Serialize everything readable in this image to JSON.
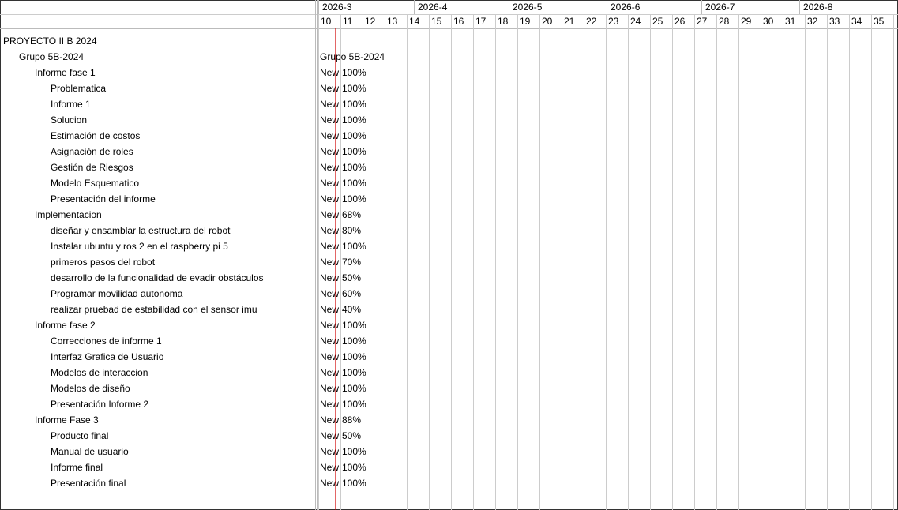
{
  "timeline": {
    "months": [
      "2026-3",
      "2026-4",
      "2026-5",
      "2026-6",
      "2026-7",
      "2026-8"
    ],
    "weeks": [
      "10",
      "11",
      "12",
      "13",
      "14",
      "15",
      "16",
      "17",
      "18",
      "19",
      "20",
      "21",
      "22",
      "23",
      "24",
      "25",
      "26",
      "27",
      "28",
      "29",
      "30",
      "31",
      "32",
      "33",
      "34",
      "35"
    ]
  },
  "tasks": [
    {
      "name": "PROYECTO II B 2024",
      "children": [
        {
          "name": "Grupo 5B-2024",
          "bar_label": "Grupo 5B-2024",
          "children": [
            {
              "name": "Informe fase 1",
              "status": "New",
              "progress": "100%",
              "children": [
                {
                  "name": "Problematica",
                  "status": "New",
                  "progress": "100%"
                },
                {
                  "name": "Informe 1",
                  "status": "New",
                  "progress": "100%"
                },
                {
                  "name": "Solucion",
                  "status": "New",
                  "progress": "100%"
                },
                {
                  "name": "Estimación de costos",
                  "status": "New",
                  "progress": "100%"
                },
                {
                  "name": "Asignación de roles",
                  "status": "New",
                  "progress": "100%"
                },
                {
                  "name": "Gestión de Riesgos",
                  "status": "New",
                  "progress": "100%"
                },
                {
                  "name": "Modelo Esquematico",
                  "status": "New",
                  "progress": "100%"
                },
                {
                  "name": "Presentación del informe",
                  "status": "New",
                  "progress": "100%"
                }
              ]
            },
            {
              "name": "Implementacion",
              "status": "New",
              "progress": "68%",
              "children": [
                {
                  "name": "diseñar y ensamblar la estructura del robot",
                  "status": "New",
                  "progress": "80%"
                },
                {
                  "name": "Instalar ubuntu y ros 2 en el raspberry pi 5",
                  "status": "New",
                  "progress": "100%"
                },
                {
                  "name": "primeros pasos del robot",
                  "status": "New",
                  "progress": "70%"
                },
                {
                  "name": "desarrollo de la funcionalidad de evadir obstáculos",
                  "status": "New",
                  "progress": "50%"
                },
                {
                  "name": "Programar movilidad autonoma",
                  "status": "New",
                  "progress": "60%"
                },
                {
                  "name": "realizar pruebad de estabilidad con el sensor imu",
                  "status": "New",
                  "progress": "40%"
                }
              ]
            },
            {
              "name": "Informe fase 2",
              "status": "New",
              "progress": "100%",
              "children": [
                {
                  "name": "Correcciones de informe 1",
                  "status": "New",
                  "progress": "100%"
                },
                {
                  "name": "Interfaz Grafica de Usuario",
                  "status": "New",
                  "progress": "100%"
                },
                {
                  "name": "Modelos de interaccion",
                  "status": "New",
                  "progress": "100%"
                },
                {
                  "name": "Modelos de diseño",
                  "status": "New",
                  "progress": "100%"
                },
                {
                  "name": "Presentación Informe 2",
                  "status": "New",
                  "progress": "100%"
                }
              ]
            },
            {
              "name": "Informe Fase 3",
              "status": "New",
              "progress": "88%",
              "children": [
                {
                  "name": "Producto final",
                  "status": "New",
                  "progress": "50%"
                },
                {
                  "name": "Manual de usuario",
                  "status": "New",
                  "progress": "100%"
                },
                {
                  "name": "Informe final",
                  "status": "New",
                  "progress": "100%"
                },
                {
                  "name": "Presentación final",
                  "status": "New",
                  "progress": "100%"
                }
              ]
            }
          ]
        }
      ]
    }
  ]
}
